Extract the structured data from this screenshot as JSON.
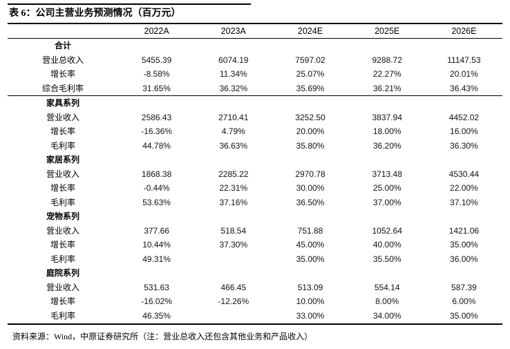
{
  "page": {
    "background": "#ffffff",
    "text_color": "#000000",
    "rule_color": "#000000"
  },
  "title": "表 6：公司主营业务预测情况（百万元）",
  "table": {
    "columns": [
      "2022A",
      "2023A",
      "2024E",
      "2025E",
      "2026E"
    ],
    "sections": [
      {
        "name": "合计",
        "divider_after": true,
        "rows": [
          {
            "label": "营业总收入",
            "values": [
              "5455.39",
              "6074.19",
              "7597.02",
              "9288.72",
              "11147.53"
            ]
          },
          {
            "label": "增长率",
            "values": [
              "-8.58%",
              "11.34%",
              "25.07%",
              "22.27%",
              "20.01%"
            ]
          },
          {
            "label": "综合毛利率",
            "values": [
              "31.65%",
              "36.32%",
              "35.69%",
              "36.21%",
              "36.43%"
            ]
          }
        ]
      },
      {
        "name": "家具系列",
        "divider_after": false,
        "rows": [
          {
            "label": "营业收入",
            "values": [
              "2586.43",
              "2710.41",
              "3252.50",
              "3837.94",
              "4452.02"
            ]
          },
          {
            "label": "增长率",
            "values": [
              "-16.36%",
              "4.79%",
              "20.00%",
              "18.00%",
              "16.00%"
            ]
          },
          {
            "label": "毛利率",
            "values": [
              "44.78%",
              "36.63%",
              "35.80%",
              "36.20%",
              "36.30%"
            ]
          }
        ]
      },
      {
        "name": "家居系列",
        "divider_after": false,
        "rows": [
          {
            "label": "营业收入",
            "values": [
              "1868.38",
              "2285.22",
              "2970.78",
              "3713.48",
              "4530.44"
            ]
          },
          {
            "label": "增长率",
            "values": [
              "-0.44%",
              "22.31%",
              "30.00%",
              "25.00%",
              "22.00%"
            ]
          },
          {
            "label": "毛利率",
            "values": [
              "53.63%",
              "37.16%",
              "36.50%",
              "37.00%",
              "37.10%"
            ]
          }
        ]
      },
      {
        "name": "宠物系列",
        "divider_after": false,
        "rows": [
          {
            "label": "营业收入",
            "values": [
              "377.66",
              "518.54",
              "751.88",
              "1052.64",
              "1421.06"
            ]
          },
          {
            "label": "增长率",
            "values": [
              "10.44%",
              "37.30%",
              "45.00%",
              "40.00%",
              "35.00%"
            ]
          },
          {
            "label": "毛利率",
            "values": [
              "49.31%",
              "",
              "35.00%",
              "35.50%",
              "36.00%"
            ]
          }
        ]
      },
      {
        "name": "庭院系列",
        "divider_after": false,
        "rows": [
          {
            "label": "营业收入",
            "values": [
              "531.63",
              "466.45",
              "513.09",
              "554.14",
              "587.39"
            ]
          },
          {
            "label": "增长率",
            "values": [
              "-16.02%",
              "-12.26%",
              "10.00%",
              "8.00%",
              "6.00%"
            ]
          },
          {
            "label": "毛利率",
            "values": [
              "46.35%",
              "",
              "33.00%",
              "34.00%",
              "35.00%"
            ]
          }
        ]
      }
    ]
  },
  "footer": {
    "source": "资料来源：Wind，中原证券研究所（注：营业总收入还包含其他业务和产品收入）"
  }
}
